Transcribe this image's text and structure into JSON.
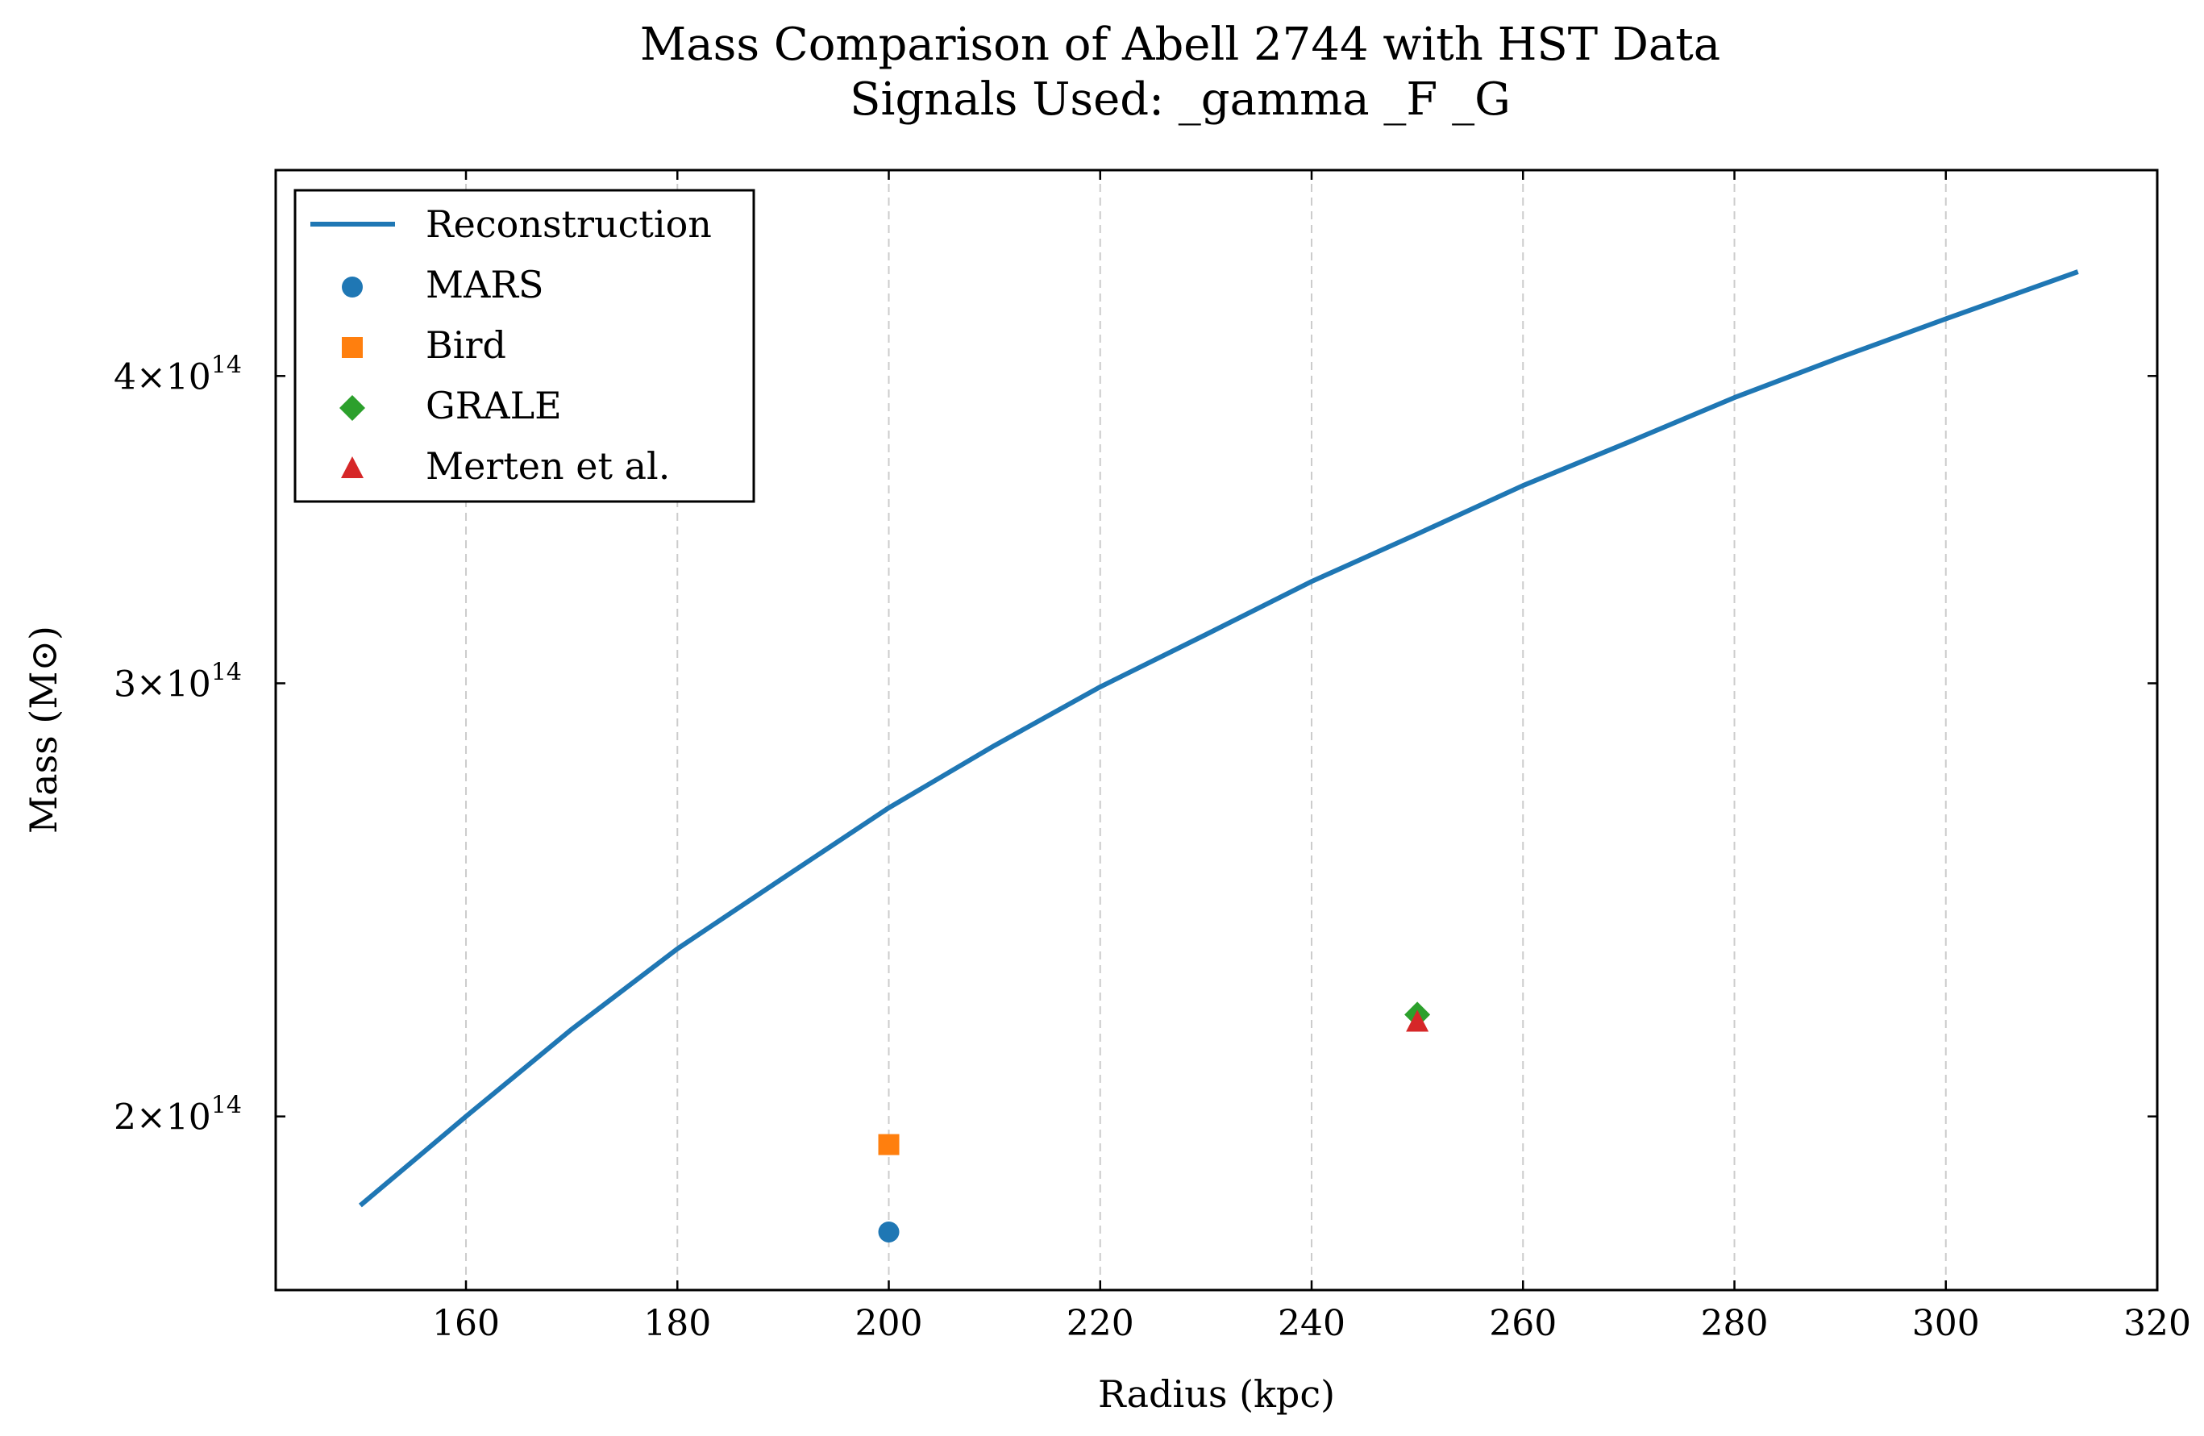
{
  "chart_data": {
    "type": "line",
    "title": "Mass Comparison of Abell 2744 with HST Data",
    "subtitle": "Signals Used: _gamma _F _G",
    "xlabel": "Radius (kpc)",
    "ylabel": "Mass (M⊙)",
    "xlim": [
      142,
      320
    ],
    "ylim": [
      170000000000000.0,
      485000000000000.0
    ],
    "y_scale": "log",
    "grid": {
      "x": true,
      "y": false,
      "style": "dashed"
    },
    "legend_position": "top-left",
    "x_ticks": [
      {
        "value": 160,
        "label": "160"
      },
      {
        "value": 180,
        "label": "180"
      },
      {
        "value": 200,
        "label": "200"
      },
      {
        "value": 220,
        "label": "220"
      },
      {
        "value": 240,
        "label": "240"
      },
      {
        "value": 260,
        "label": "260"
      },
      {
        "value": 280,
        "label": "280"
      },
      {
        "value": 300,
        "label": "300"
      },
      {
        "value": 320,
        "label": "320"
      }
    ],
    "y_ticks": [
      {
        "value": 200000000000000.0,
        "mantissa": "2",
        "exponent": "14"
      },
      {
        "value": 300000000000000.0,
        "mantissa": "3",
        "exponent": "14"
      },
      {
        "value": 400000000000000.0,
        "mantissa": "4",
        "exponent": "14"
      }
    ],
    "series": [
      {
        "name": "Reconstruction",
        "kind": "line",
        "color": "#1f77b4",
        "x": [
          150,
          160,
          170,
          180,
          190,
          200,
          210,
          220,
          230,
          240,
          250,
          260,
          270,
          280,
          290,
          300,
          312.5
        ],
        "y": [
          184000000000000.0,
          200000000000000.0,
          217000000000000.0,
          234000000000000.0,
          250000000000000.0,
          267000000000000.0,
          283000000000000.0,
          299000000000000.0,
          314000000000000.0,
          330000000000000.0,
          345000000000000.0,
          361000000000000.0,
          376000000000000.0,
          392000000000000.0,
          407000000000000.0,
          422000000000000.0,
          441000000000000.0
        ]
      },
      {
        "name": "MARS",
        "kind": "scatter",
        "marker": "circle",
        "color": "#1f77b4",
        "x": [
          200
        ],
        "y": [
          179500000000000.0
        ]
      },
      {
        "name": "Bird",
        "kind": "scatter",
        "marker": "square",
        "color": "#ff7f0e",
        "x": [
          200
        ],
        "y": [
          194800000000000.0
        ]
      },
      {
        "name": "GRALE",
        "kind": "scatter",
        "marker": "diamond",
        "color": "#2ca02c",
        "x": [
          250
        ],
        "y": [
          220000000000000.0
        ]
      },
      {
        "name": "Merten et al.",
        "kind": "scatter",
        "marker": "triangle",
        "color": "#d62728",
        "x": [
          250
        ],
        "y": [
          218500000000000.0
        ]
      }
    ]
  }
}
